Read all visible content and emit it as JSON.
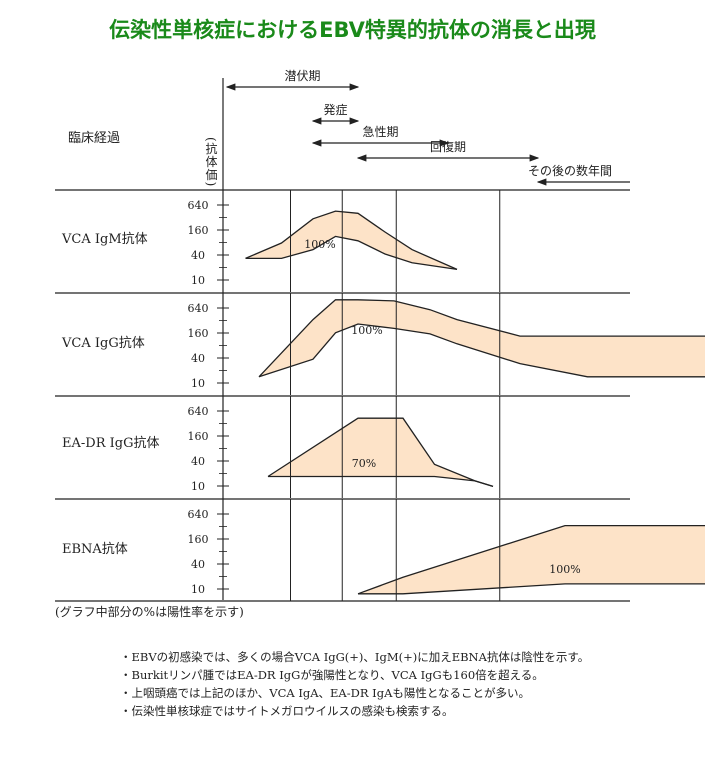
{
  "title": "伝染性単核症におけるEBV特異的抗体の消長と出現",
  "colors": {
    "band": "#fde3c8",
    "line": "#222222",
    "title": "#1a8a1a"
  },
  "clinical": {
    "label": "臨床経過",
    "yaxis_label": "(抗体価)",
    "phases": [
      {
        "label": "潜伏期",
        "start": 0,
        "end": 3
      },
      {
        "label": "発症",
        "start": 2,
        "end": 3
      },
      {
        "label": "急性期",
        "start": 2,
        "end": 5
      },
      {
        "label": "回復期",
        "start": 3,
        "end": 7
      },
      {
        "label": "その後の数年間",
        "start": 7,
        "end": 10
      }
    ]
  },
  "chart_data": [
    {
      "type": "area",
      "name": "VCA IgM抗体",
      "yticks": [
        "640",
        "160",
        "40",
        "10"
      ],
      "band_label": "100%",
      "x": [
        0.5,
        1.3,
        2.0,
        2.5,
        3.0,
        3.6,
        4.2,
        5.2
      ],
      "upper": [
        1.3,
        2.0,
        3.1,
        3.45,
        3.35,
        2.5,
        1.7,
        0.8
      ],
      "lower": [
        1.3,
        1.3,
        1.7,
        2.3,
        2.1,
        1.5,
        1.1,
        0.8
      ]
    },
    {
      "type": "area",
      "name": "VCA IgG抗体",
      "yticks": [
        "640",
        "160",
        "40",
        "10"
      ],
      "band_label": "100%",
      "x": [
        0.8,
        2.0,
        2.5,
        3.0,
        3.8,
        4.6,
        5.2,
        6.6,
        8.1,
        11.0
      ],
      "upper": [
        0.6,
        3.2,
        4.1,
        4.1,
        4.05,
        3.65,
        3.2,
        2.45,
        2.45,
        2.45
      ],
      "lower": [
        0.6,
        1.4,
        2.6,
        3.0,
        2.8,
        2.55,
        2.1,
        1.2,
        0.6,
        0.6
      ]
    },
    {
      "type": "area",
      "name": "EA-DR IgG抗体",
      "yticks": [
        "640",
        "160",
        "40",
        "10"
      ],
      "band_label": "70%",
      "x": [
        1.0,
        3.0,
        3.1,
        4.0,
        4.7,
        5.6,
        6.0
      ],
      "upper": [
        0.75,
        3.4,
        3.4,
        3.4,
        1.3,
        0.55,
        0.3
      ],
      "lower": [
        0.75,
        0.75,
        0.75,
        0.75,
        0.75,
        0.55,
        0.3
      ]
    },
    {
      "type": "area",
      "name": "EBNA抗体",
      "yticks": [
        "640",
        "160",
        "40",
        "10"
      ],
      "band_label": "100%",
      "x": [
        3.0,
        4.0,
        7.6,
        11.0
      ],
      "upper": [
        0.1,
        0.85,
        3.2,
        3.2
      ],
      "lower": [
        0.1,
        0.1,
        0.55,
        0.55
      ]
    }
  ],
  "footnote": "(グラフ中部分の%は陽性率を示す)",
  "notes": [
    "EBVの初感染では、多くの場合VCA IgG(+)、IgM(+)に加えEBNA抗体は陰性を示す。",
    "Burkitリンパ腫ではEA-DR IgGが強陽性となり、VCA IgGも160倍を超える。",
    "上咽頭癌では上記のほか、VCA IgA、EA-DR IgAも陽性となることが多い。",
    "伝染性単核球症ではサイトメガロウイルスの感染も検索する。"
  ]
}
